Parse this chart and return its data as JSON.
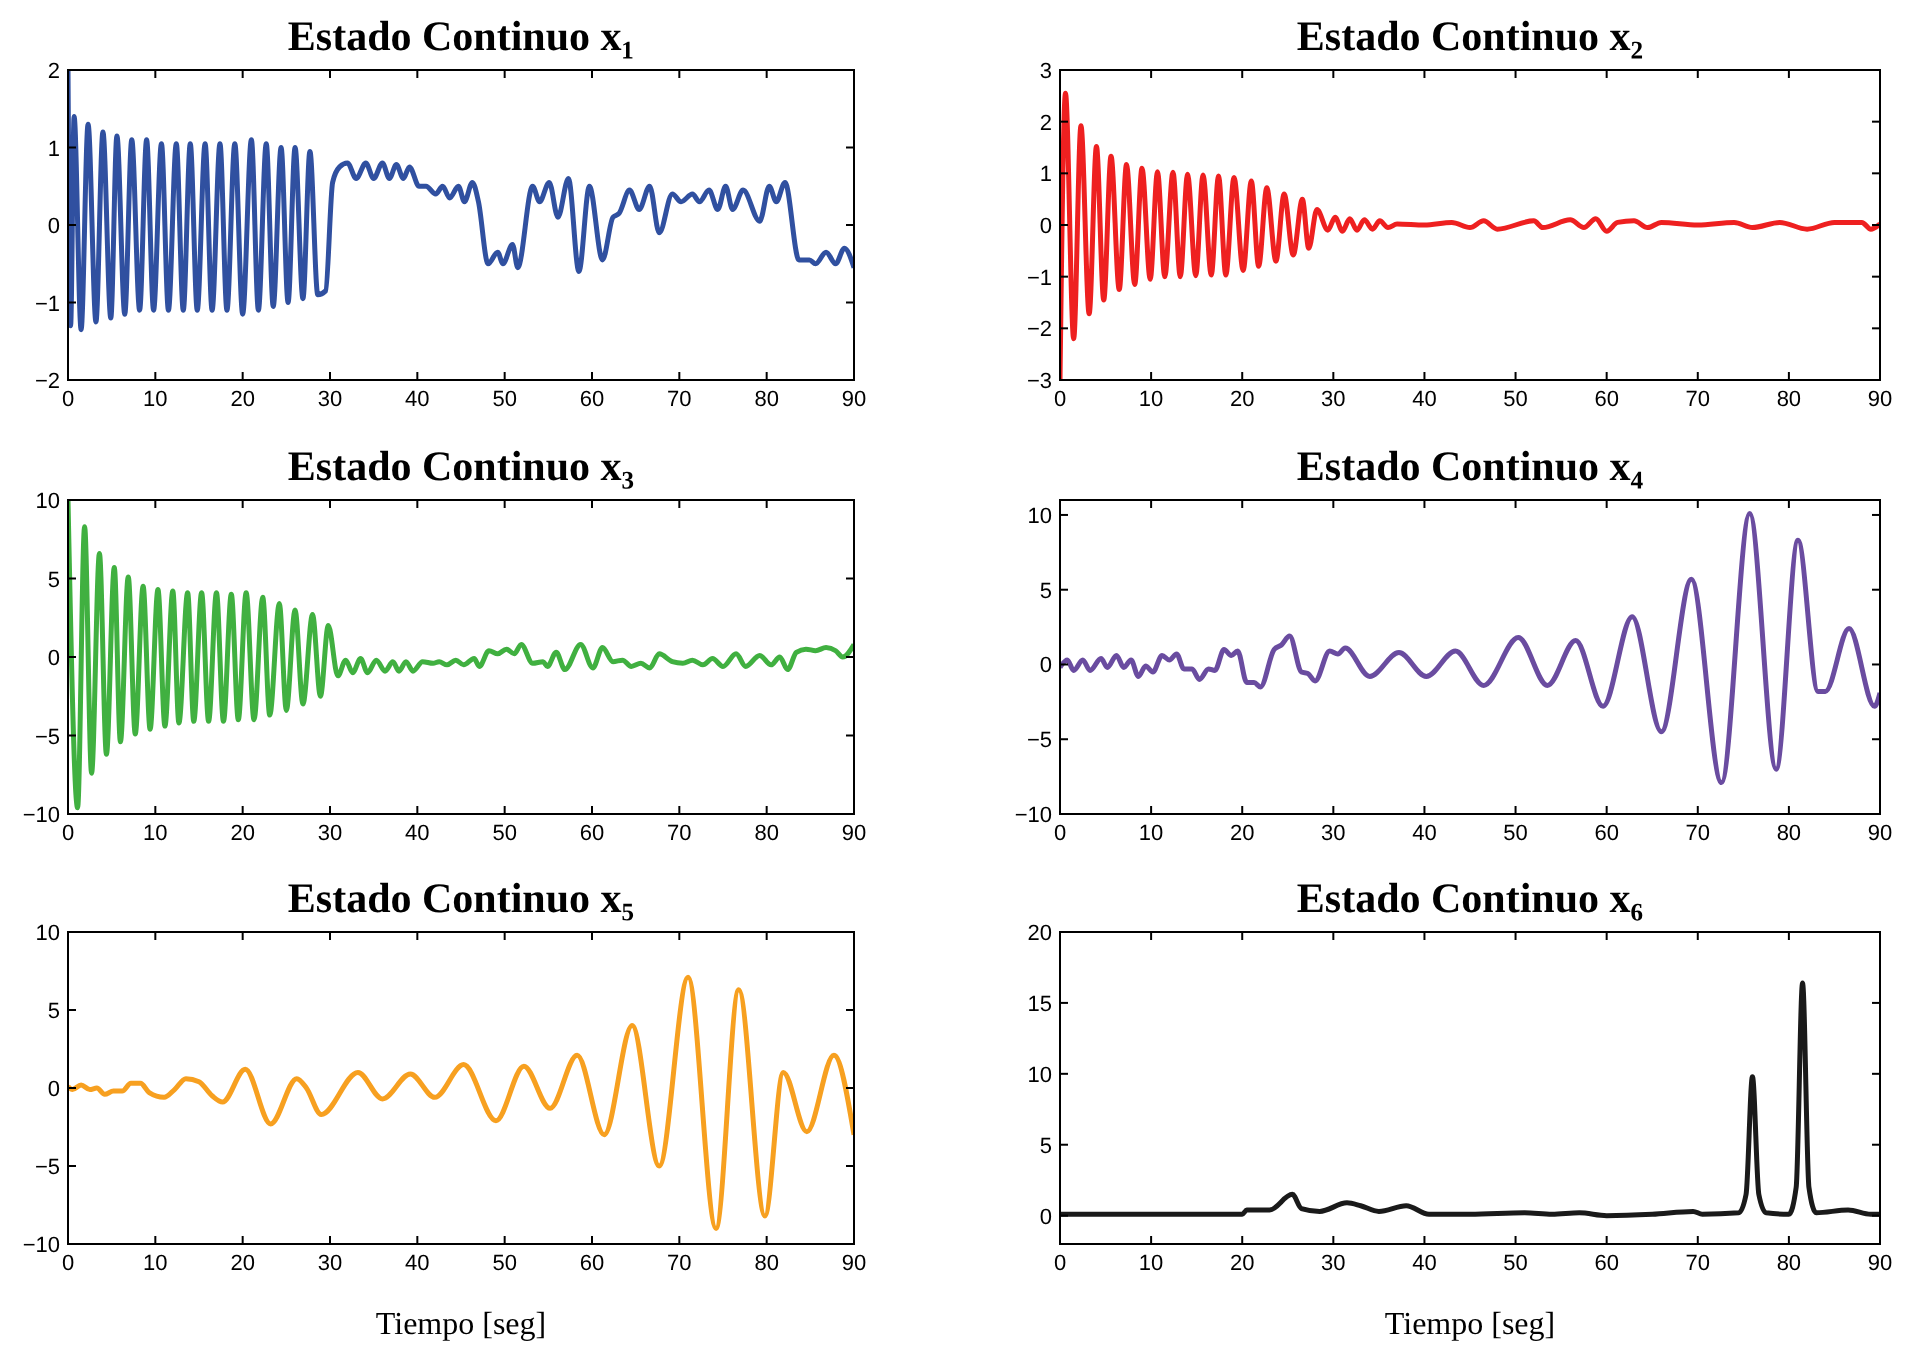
{
  "chart_data": [
    {
      "type": "line",
      "title": "Estado Continuo x₁",
      "xlim": [
        0,
        90
      ],
      "xticks": [
        0,
        10,
        20,
        30,
        40,
        50,
        60,
        70,
        80,
        90
      ],
      "ylim": [
        -2,
        2
      ],
      "yticks": [
        -2,
        -1,
        0,
        1,
        2
      ],
      "grid": false,
      "series": [
        {
          "color": "#3050a0",
          "x": [
            0,
            0.3,
            0.7,
            1.5,
            2.3,
            3.2,
            4.0,
            4.9,
            5.6,
            6.5,
            7.3,
            8.2,
            9.0,
            9.8,
            10.7,
            11.5,
            12.4,
            13.2,
            14.0,
            14.8,
            15.7,
            16.5,
            17.4,
            18.2,
            19.1,
            20.0,
            21.0,
            21.8,
            22.7,
            23.5,
            24.4,
            25.2,
            26.0,
            26.9,
            27.7,
            28.6,
            29.5,
            30.3,
            31.1,
            32.0,
            33.0,
            34.1,
            35.0,
            36.0,
            36.8,
            37.6,
            38.4,
            39.1,
            40.2,
            41.0,
            42.1,
            42.9,
            43.7,
            44.7,
            45.4,
            46.3,
            47.0,
            48.1,
            49.2,
            49.8,
            50.9,
            51.5,
            53.2,
            54.0,
            55.1,
            56.1,
            57.3,
            58.5,
            59.7,
            61.2,
            62.4,
            63.1,
            64.3,
            65.4,
            66.6,
            67.7,
            69.2,
            70.2,
            71.5,
            72.3,
            73.4,
            74.4,
            75.3,
            76.1,
            77.3,
            79.2,
            80.3,
            81.1,
            82.1,
            83.7,
            84.9,
            85.6,
            86.8,
            87.9,
            88.9,
            90
          ],
          "values": [
            2,
            -1.3,
            1.4,
            -1.35,
            1.3,
            -1.25,
            1.2,
            -1.2,
            1.15,
            -1.15,
            1.1,
            -1.1,
            1.1,
            -1.1,
            1.05,
            -1.1,
            1.05,
            -1.1,
            1.05,
            -1.1,
            1.05,
            -1.1,
            1.05,
            -1.1,
            1.05,
            -1.15,
            1.1,
            -1.1,
            1.05,
            -1.05,
            1.0,
            -1.0,
            1.0,
            -0.95,
            0.95,
            -0.9,
            -0.85,
            0.55,
            0.75,
            0.8,
            0.6,
            0.8,
            0.6,
            0.8,
            0.6,
            0.78,
            0.6,
            0.75,
            0.5,
            0.5,
            0.4,
            0.5,
            0.35,
            0.5,
            0.3,
            0.55,
            0.3,
            -0.5,
            -0.35,
            -0.5,
            -0.25,
            -0.55,
            0.5,
            0.3,
            0.55,
            0.1,
            0.6,
            -0.6,
            0.5,
            -0.45,
            0.1,
            0.15,
            0.45,
            0.2,
            0.5,
            -0.1,
            0.4,
            0.3,
            0.4,
            0.3,
            0.45,
            0.2,
            0.5,
            0.2,
            0.45,
            0.05,
            0.5,
            0.3,
            0.55,
            -0.45,
            -0.45,
            -0.5,
            -0.35,
            -0.5,
            -0.3,
            -0.55
          ]
        }
      ]
    },
    {
      "type": "line",
      "title": "Estado Continuo x₂",
      "xlim": [
        0,
        90
      ],
      "xticks": [
        0,
        10,
        20,
        30,
        40,
        50,
        60,
        70,
        80,
        90
      ],
      "ylim": [
        -3,
        3
      ],
      "yticks": [
        -3,
        -2,
        -1,
        0,
        1,
        2,
        3
      ],
      "grid": false,
      "series": [
        {
          "color": "#ee2020",
          "x": [
            0,
            0.6,
            1.5,
            2.3,
            3.2,
            4.0,
            4.8,
            5.6,
            6.5,
            7.3,
            8.2,
            9.0,
            9.9,
            10.7,
            11.5,
            12.4,
            13.2,
            14.0,
            14.9,
            15.7,
            16.6,
            17.4,
            18.2,
            19.1,
            20.1,
            21.0,
            21.8,
            22.7,
            23.7,
            24.6,
            25.6,
            26.6,
            27.3,
            28.2,
            29.4,
            30.2,
            31.0,
            31.8,
            32.6,
            33.4,
            34.3,
            35.1,
            36,
            37,
            40,
            43,
            45,
            46.5,
            48,
            52,
            53,
            56,
            57.5,
            58.8,
            60,
            61.2,
            63,
            64.5,
            66,
            70,
            74,
            76,
            79,
            82,
            85,
            88,
            89,
            90
          ],
          "values": [
            -3,
            2.55,
            -2.2,
            1.92,
            -1.72,
            1.52,
            -1.45,
            1.33,
            -1.25,
            1.17,
            -1.15,
            1.1,
            -1.05,
            1.03,
            -1.0,
            1.02,
            -1.0,
            0.98,
            -0.98,
            0.97,
            -0.97,
            0.95,
            -0.97,
            0.92,
            -0.88,
            0.85,
            -0.8,
            0.72,
            -0.7,
            0.6,
            -0.58,
            0.5,
            -0.45,
            0.3,
            -0.1,
            0.15,
            -0.12,
            0.12,
            -0.1,
            0.1,
            -0.08,
            0.08,
            -0.05,
            0.02,
            0,
            0.05,
            -0.05,
            0.08,
            -0.08,
            0.08,
            -0.05,
            0.1,
            -0.05,
            0.12,
            -0.12,
            0.05,
            0.08,
            -0.05,
            0.05,
            0,
            0.05,
            -0.05,
            0.05,
            -0.08,
            0.05,
            0.05,
            -0.08,
            0.02
          ]
        }
      ]
    },
    {
      "type": "line",
      "title": "Estado Continuo x₃",
      "xlim": [
        0,
        90
      ],
      "xticks": [
        0,
        10,
        20,
        30,
        40,
        50,
        60,
        70,
        80,
        90
      ],
      "ylim": [
        -10,
        10
      ],
      "yticks": [
        -10,
        -5,
        0,
        5,
        10
      ],
      "grid": false,
      "series": [
        {
          "color": "#40b040",
          "x": [
            0,
            1.1,
            1.9,
            2.7,
            3.6,
            4.4,
            5.3,
            6.0,
            6.9,
            7.7,
            8.6,
            9.4,
            10.3,
            11.1,
            12.0,
            12.7,
            13.7,
            14.4,
            15.3,
            16.1,
            17.0,
            17.8,
            18.7,
            19.5,
            20.4,
            21.3,
            22.3,
            23.1,
            24.2,
            25.0,
            26.0,
            26.9,
            28.0,
            28.9,
            29.8,
            30.9,
            31.8,
            32.6,
            33.5,
            34.3,
            35.3,
            36.3,
            37.2,
            37.9,
            38.7,
            39.5,
            40.6,
            41.8,
            42.5,
            43.4,
            44.4,
            45.3,
            46.5,
            47.1,
            48.2,
            49.2,
            50.2,
            51.1,
            51.9,
            53.2,
            54.4,
            54.9,
            55.9,
            56.9,
            58.7,
            60.1,
            61.2,
            62.4,
            63.5,
            64.5,
            65.6,
            66.6,
            67.7,
            69.2,
            70.4,
            71.5,
            72.7,
            73.8,
            75,
            76.5,
            77.6,
            79.2,
            80.5,
            81.5,
            82.4,
            83.4,
            84.5,
            85.6,
            86.8,
            87.9,
            88.7,
            90
          ],
          "values": [
            10,
            -9.6,
            8.3,
            -7.4,
            6.6,
            -6.2,
            5.7,
            -5.4,
            5.1,
            -4.9,
            4.5,
            -4.6,
            4.3,
            -4.4,
            4.2,
            -4.2,
            4.1,
            -4.1,
            4.1,
            -4.1,
            4.1,
            -4.1,
            4.0,
            -4.0,
            4.1,
            -4.0,
            3.8,
            -3.7,
            3.4,
            -3.4,
            3.0,
            -3.0,
            2.7,
            -2.5,
            2.0,
            -1.2,
            -0.2,
            -1.0,
            -0.1,
            -1.0,
            -0.2,
            -0.9,
            -0.3,
            -0.9,
            -0.3,
            -0.9,
            -0.3,
            -0.4,
            -0.3,
            -0.5,
            -0.2,
            -0.5,
            -0.1,
            -0.6,
            0.4,
            0.2,
            0.5,
            0.2,
            0.8,
            -0.4,
            -0.3,
            -0.6,
            0.3,
            -0.8,
            0.8,
            -0.7,
            0.6,
            -0.3,
            -0.2,
            -0.6,
            -0.4,
            -0.7,
            0.2,
            -0.3,
            -0.4,
            -0.2,
            -0.5,
            -0.1,
            -0.6,
            0.2,
            -0.6,
            0.1,
            -0.5,
            0.0,
            -0.8,
            0.3,
            0.5,
            0.4,
            0.6,
            0.4,
            0.0,
            0.8
          ]
        }
      ]
    },
    {
      "type": "line",
      "title": "Estado Continuo x₄",
      "xlim": [
        0,
        90
      ],
      "xticks": [
        0,
        10,
        20,
        30,
        40,
        50,
        60,
        70,
        80,
        90
      ],
      "ylim": [
        -10,
        11
      ],
      "yticks": [
        -10,
        -5,
        0,
        5,
        10
      ],
      "grid": false,
      "series": [
        {
          "color": "#6a4ca0",
          "x": [
            0,
            0.8,
            1.5,
            2.5,
            3.3,
            4.5,
            5.2,
            6.2,
            7.0,
            7.8,
            8.6,
            9.4,
            10.2,
            11.2,
            12.0,
            12.8,
            13.6,
            14.5,
            15.3,
            16.3,
            17.0,
            18.0,
            18.8,
            19.5,
            20.5,
            21.3,
            22.0,
            23.5,
            24.3,
            25.2,
            26.5,
            27.2,
            28.0,
            29.6,
            30.5,
            31.3,
            34.0,
            37.2,
            40.2,
            43.4,
            46.5,
            50.3,
            53.5,
            56.6,
            59.6,
            62.8,
            66.0,
            69.3,
            72.6,
            75.7,
            78.6,
            81.0,
            83.2,
            84.0,
            86.6,
            89.4,
            90
          ],
          "values": [
            -0.2,
            0.3,
            -0.4,
            0.3,
            -0.4,
            0.4,
            -0.2,
            0.6,
            -0.2,
            0.3,
            -0.8,
            -0.1,
            -0.5,
            0.6,
            0.3,
            0.7,
            -0.3,
            -0.3,
            -1.0,
            -0.3,
            -0.4,
            1.0,
            0.6,
            0.9,
            -1.2,
            -1.2,
            -1.5,
            1.0,
            1.3,
            1.9,
            -0.5,
            -0.6,
            -1.1,
            0.9,
            0.7,
            1.1,
            -0.8,
            0.8,
            -0.8,
            0.9,
            -1.4,
            1.8,
            -1.4,
            1.6,
            -2.8,
            3.2,
            -4.5,
            5.7,
            -7.9,
            10.1,
            -7.0,
            8.3,
            -1.8,
            -1.8,
            2.4,
            -2.8,
            -1.9
          ]
        }
      ]
    },
    {
      "type": "line",
      "title": "Estado Continuo x₅",
      "xlabel": "Tiempo [seg]",
      "xlim": [
        0,
        90
      ],
      "xticks": [
        0,
        10,
        20,
        30,
        40,
        50,
        60,
        70,
        80,
        90
      ],
      "ylim": [
        -10,
        10
      ],
      "yticks": [
        -10,
        -5,
        0,
        5,
        10
      ],
      "grid": false,
      "series": [
        {
          "color": "#f7a020",
          "x": [
            0,
            0.5,
            1.5,
            2.5,
            3.3,
            4.2,
            5.2,
            6.2,
            7.2,
            8.3,
            9.3,
            11.0,
            12.2,
            13.5,
            15.0,
            16.5,
            17.7,
            20.3,
            23.2,
            26.2,
            27.3,
            29.0,
            33.2,
            36.0,
            39.2,
            42.0,
            45.3,
            49.0,
            52.2,
            55.2,
            58.3,
            61.4,
            64.6,
            67.7,
            71.0,
            74.2,
            76.8,
            79.8,
            81.9,
            84.6,
            87.7,
            90
          ],
          "values": [
            0.1,
            -0.1,
            0.2,
            -0.1,
            0,
            -0.4,
            -0.2,
            -0.2,
            0.3,
            0.3,
            -0.3,
            -0.6,
            -0.1,
            0.6,
            0.4,
            -0.5,
            -0.9,
            1.2,
            -2.3,
            0.6,
            0,
            -1.7,
            1.0,
            -0.7,
            0.9,
            -0.6,
            1.5,
            -2.1,
            1.4,
            -1.3,
            2.1,
            -3.0,
            4.0,
            -5.0,
            7.1,
            -9.0,
            6.3,
            -8.2,
            1.0,
            -2.8,
            2.1,
            -3.0
          ]
        }
      ]
    },
    {
      "type": "line",
      "title": "Estado Continuo x₆",
      "xlabel": "Tiempo [seg]",
      "xlim": [
        0,
        90
      ],
      "xticks": [
        0,
        10,
        20,
        30,
        40,
        50,
        60,
        70,
        80,
        90
      ],
      "ylim": [
        -2,
        20
      ],
      "yticks": [
        0,
        5,
        10,
        15,
        20
      ],
      "grid": false,
      "series": [
        {
          "color": "#1a1a1a",
          "x": [
            0,
            20,
            20.5,
            23,
            25.5,
            26.5,
            28.5,
            31.5,
            33,
            35,
            38,
            40.5,
            45,
            51,
            54,
            57,
            60,
            65,
            69.5,
            70.5,
            74.5,
            75.3,
            76,
            76.7,
            77.5,
            80,
            80.8,
            81.5,
            82.2,
            83,
            86.5,
            89,
            90
          ],
          "values": [
            0.1,
            0.1,
            0.4,
            0.4,
            1.5,
            0.5,
            0.3,
            0.9,
            0.7,
            0.3,
            0.7,
            0.1,
            0.1,
            0.2,
            0.1,
            0.2,
            0.0,
            0.1,
            0.3,
            0.1,
            0.2,
            1.5,
            9.8,
            1.5,
            0.2,
            0.1,
            2,
            16.4,
            2,
            0.2,
            0.4,
            0.1,
            0.1
          ]
        }
      ]
    }
  ]
}
